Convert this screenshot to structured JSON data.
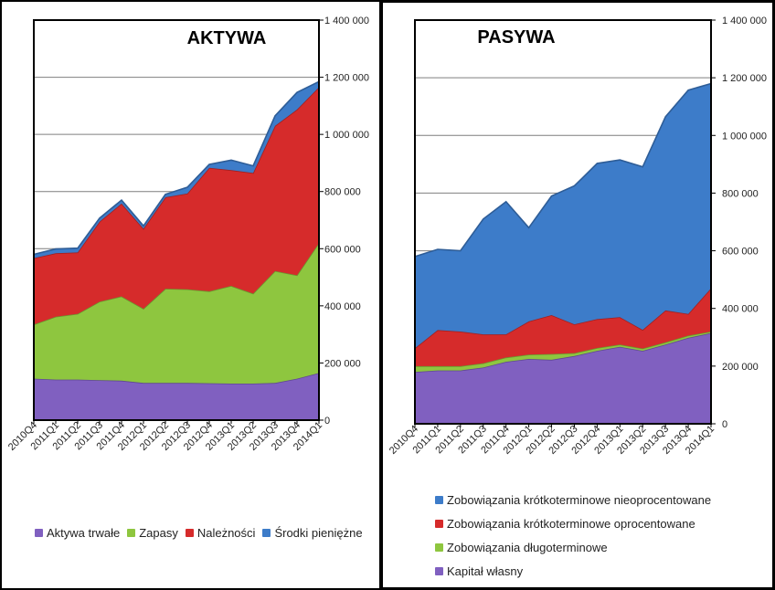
{
  "chart_data": [
    {
      "type": "area",
      "stacked": true,
      "title": "AKTYWA",
      "categories": [
        "2010Q4",
        "2011Q1",
        "2011Q2",
        "2011Q3",
        "2011Q4",
        "2012Q1",
        "2012Q2",
        "2012Q3",
        "2012Q4",
        "2013Q1",
        "2013Q2",
        "2013Q3",
        "2013Q4",
        "2014Q1"
      ],
      "series": [
        {
          "name": "Aktywa trwałe",
          "color": "#8060c0",
          "values": [
            145000,
            142000,
            142000,
            140000,
            138000,
            130000,
            130000,
            130000,
            129000,
            128000,
            128000,
            130000,
            145000,
            165000
          ]
        },
        {
          "name": "Zapasy",
          "color": "#8ec63f",
          "values": [
            190000,
            220000,
            230000,
            275000,
            295000,
            260000,
            330000,
            328000,
            322000,
            342000,
            315000,
            392000,
            362000,
            455000
          ]
        },
        {
          "name": "Należności",
          "color": "#d62b2b",
          "values": [
            232000,
            222000,
            215000,
            280000,
            325000,
            280000,
            320000,
            335000,
            432000,
            405000,
            422000,
            508000,
            580000,
            545000
          ]
        },
        {
          "name": "Środki pieniężne",
          "color": "#3d7cc9",
          "values": [
            13000,
            15000,
            15000,
            12000,
            12000,
            10000,
            10000,
            22000,
            12000,
            35000,
            25000,
            35000,
            60000,
            20000
          ]
        }
      ],
      "ylim": [
        0,
        1400000
      ],
      "yticks": [
        "0",
        "200 000",
        "400 000",
        "600 000",
        "800 000",
        "1 000 000",
        "1 200 000",
        "1 400 000"
      ],
      "grid": true,
      "legend": "bottom"
    },
    {
      "type": "area",
      "stacked": true,
      "title": "PASYWA",
      "categories": [
        "2010Q4",
        "2011Q1",
        "2011Q2",
        "2011Q3",
        "2011Q4",
        "2012Q1",
        "2012Q2",
        "2012Q3",
        "2012Q4",
        "2013Q1",
        "2013Q2",
        "2013Q3",
        "2013Q4",
        "2014Q1"
      ],
      "series": [
        {
          "name": "Kapitał własny",
          "color": "#8060c0",
          "values": [
            180000,
            185000,
            185000,
            195000,
            215000,
            225000,
            222000,
            235000,
            253000,
            267000,
            253000,
            275000,
            298000,
            315000
          ]
        },
        {
          "name": "Zobowiązania długoterminowe",
          "color": "#8ec63f",
          "values": [
            20000,
            15000,
            15000,
            15000,
            15000,
            15000,
            20000,
            10000,
            10000,
            8000,
            8000,
            8000,
            8000,
            5000
          ]
        },
        {
          "name": "Zobowiązania krótkoterminowe oprocentowane",
          "color": "#d62b2b",
          "values": [
            62000,
            125000,
            120000,
            100000,
            80000,
            115000,
            135000,
            100000,
            100000,
            95000,
            65000,
            110000,
            75000,
            150000
          ]
        },
        {
          "name": "Zobowiązania krótkoterminowe nieoprocentowane",
          "color": "#3d7cc9",
          "values": [
            318000,
            280000,
            280000,
            400000,
            460000,
            325000,
            413000,
            480000,
            540000,
            545000,
            565000,
            672000,
            776000,
            710000
          ]
        }
      ],
      "ylim": [
        0,
        1400000
      ],
      "yticks": [
        "0",
        "200 000",
        "400 000",
        "600 000",
        "800 000",
        "1 000 000",
        "1 200 000",
        "1 400 000"
      ],
      "grid": true,
      "legend": "bottom"
    }
  ]
}
